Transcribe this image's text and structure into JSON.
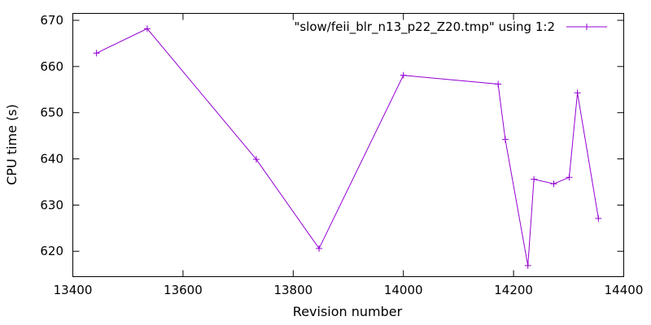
{
  "chart_data": {
    "type": "line",
    "xlabel": "Revision number",
    "ylabel": "CPU time (s)",
    "xlim": [
      13400,
      14400
    ],
    "ylim": [
      614.5,
      671.5
    ],
    "x_ticks": [
      13400,
      13600,
      13800,
      14000,
      14200,
      14400
    ],
    "y_ticks": [
      620,
      630,
      640,
      650,
      660,
      670
    ],
    "grid": false,
    "legend_position": "top-right",
    "series": [
      {
        "name": "\"slow/feii_blr_n13_p22_Z20.tmp\" using 1:2",
        "color": "#9400d3",
        "marker": "plus",
        "x": [
          13443,
          13535,
          13733,
          13847,
          14000,
          14172,
          14185,
          14226,
          14237,
          14273,
          14301,
          14316,
          14354
        ],
        "y": [
          662.9,
          668.2,
          639.9,
          620.6,
          658.1,
          656.2,
          644.2,
          616.9,
          635.6,
          634.6,
          636.0,
          654.3,
          627.1
        ]
      }
    ]
  }
}
